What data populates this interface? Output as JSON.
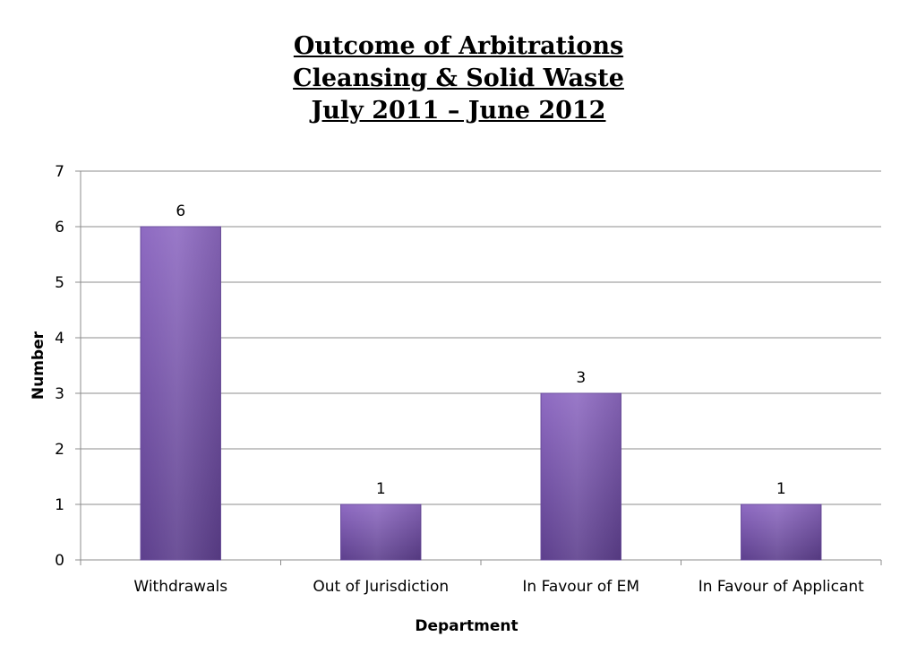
{
  "chart_data": {
    "type": "bar",
    "title": [
      "Outcome of Arbitrations",
      "Cleansing & Solid Waste",
      "July 2011 – June 2012"
    ],
    "xlabel": "Department",
    "ylabel": "Number",
    "categories": [
      "Withdrawals",
      "Out of Jurisdiction",
      "In Favour of EM",
      "In Favour of Applicant"
    ],
    "values": [
      6,
      1,
      3,
      1
    ],
    "ylim": [
      0,
      7
    ],
    "yticks": [
      0,
      1,
      2,
      3,
      4,
      5,
      6,
      7
    ],
    "grid": true,
    "legend": "none",
    "data_labels": true,
    "colors": {
      "bar_top": "#8e6ac2",
      "bar_bottom": "#5d3f8d",
      "bar_edge": "#6a4c9c",
      "grid": "#8c8c8c",
      "axis": "#8c8c8c"
    }
  }
}
